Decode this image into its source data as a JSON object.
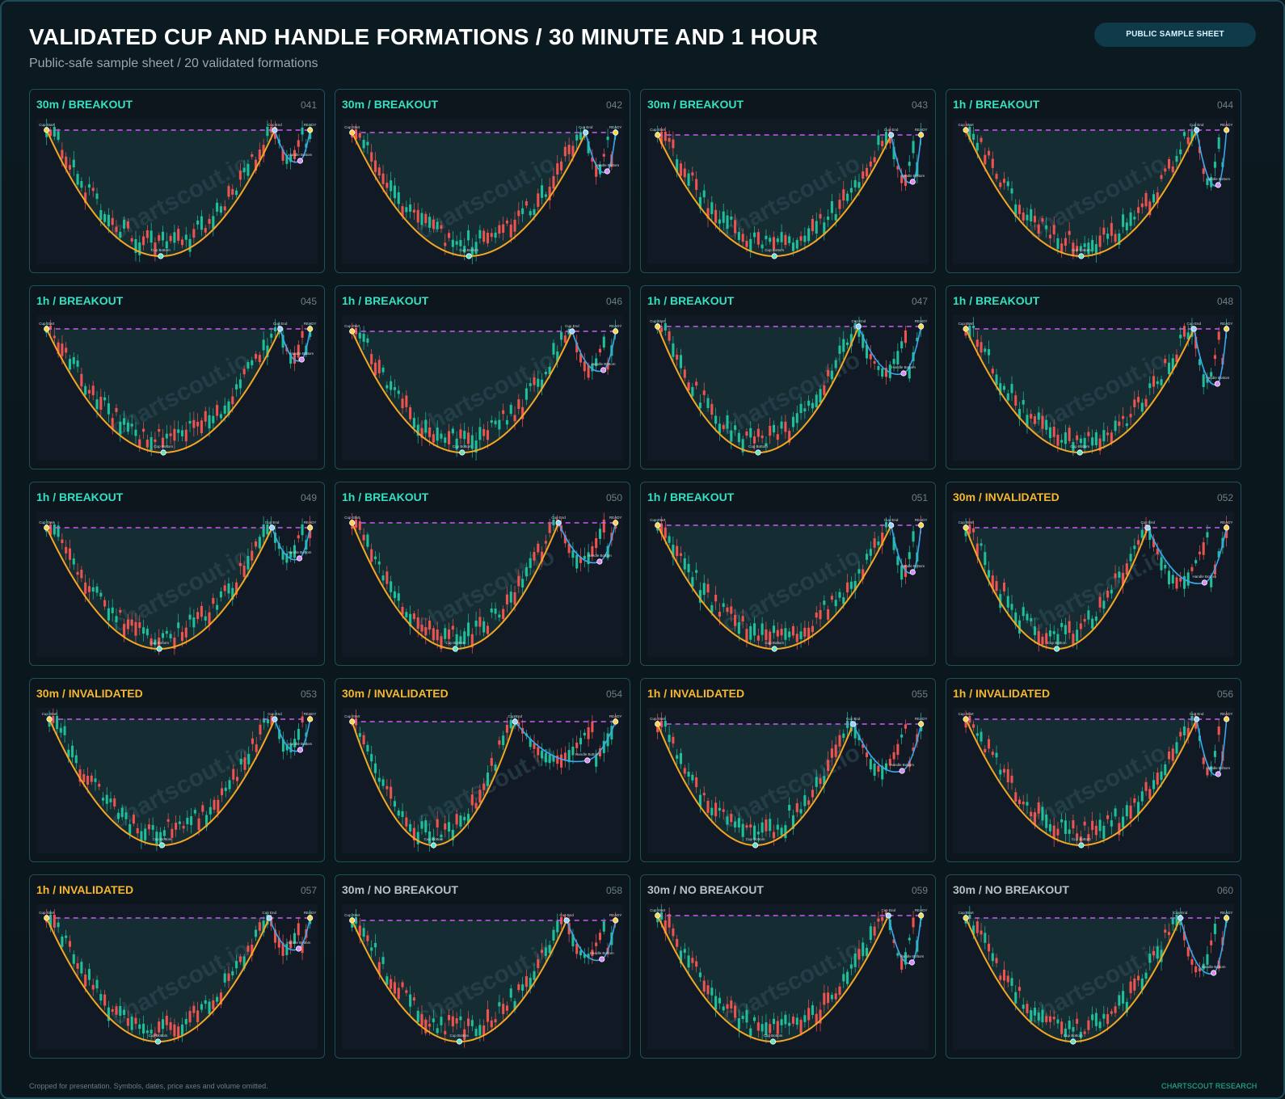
{
  "header": {
    "title": "VALIDATED CUP AND HANDLE FORMATIONS / 30 MINUTE AND 1 HOUR",
    "subtitle": "Public-safe sample sheet / 20 validated formations",
    "badge": "PUBLIC SAMPLE SHEET"
  },
  "footer": {
    "note": "Cropped for presentation. Symbols, dates, price axes and volume omitted.",
    "brand": "CHARTSCOUT RESEARCH"
  },
  "watermark": "chartscout.io",
  "marker_labels": {
    "cup_start": "Cup Start",
    "cup_end": "Cup End",
    "cup_bottom": "Cup Bottom",
    "handle_bottom": "Handle Bottom",
    "ready": "READY"
  },
  "colors": {
    "breakout": "#35e0c0",
    "invalidated": "#f5b731",
    "no_breakout": "#b8c0c6",
    "cup_curve": "#f5a623",
    "resistance": "#c95cf0",
    "handle": "#3aa8f0",
    "bull": "#1fbf9a",
    "bear": "#ef5350"
  },
  "chart_data": [
    {
      "type": "candlestick",
      "timeframe": "30m",
      "status": "BREAKOUT",
      "id": "041",
      "cup_start": 0.02,
      "cup_end": 0.86,
      "ready": 0.99
    },
    {
      "type": "candlestick",
      "timeframe": "30m",
      "status": "BREAKOUT",
      "id": "042",
      "cup_start": 0.02,
      "cup_end": 0.88,
      "ready": 0.99
    },
    {
      "type": "candlestick",
      "timeframe": "30m",
      "status": "BREAKOUT",
      "id": "043",
      "cup_start": 0.02,
      "cup_end": 0.88,
      "ready": 0.99
    },
    {
      "type": "candlestick",
      "timeframe": "1h",
      "status": "BREAKOUT",
      "id": "044",
      "cup_start": 0.03,
      "cup_end": 0.88,
      "ready": 0.99
    },
    {
      "type": "candlestick",
      "timeframe": "1h",
      "status": "BREAKOUT",
      "id": "045",
      "cup_start": 0.02,
      "cup_end": 0.88,
      "ready": 0.99
    },
    {
      "type": "candlestick",
      "timeframe": "1h",
      "status": "BREAKOUT",
      "id": "046",
      "cup_start": 0.02,
      "cup_end": 0.83,
      "ready": 0.99
    },
    {
      "type": "candlestick",
      "timeframe": "1h",
      "status": "BREAKOUT",
      "id": "047",
      "cup_start": 0.02,
      "cup_end": 0.76,
      "ready": 0.99
    },
    {
      "type": "candlestick",
      "timeframe": "1h",
      "status": "BREAKOUT",
      "id": "048",
      "cup_start": 0.03,
      "cup_end": 0.87,
      "ready": 0.99
    },
    {
      "type": "candlestick",
      "timeframe": "1h",
      "status": "BREAKOUT",
      "id": "049",
      "cup_start": 0.02,
      "cup_end": 0.85,
      "ready": 0.99
    },
    {
      "type": "candlestick",
      "timeframe": "1h",
      "status": "BREAKOUT",
      "id": "050",
      "cup_start": 0.02,
      "cup_end": 0.78,
      "ready": 0.99
    },
    {
      "type": "candlestick",
      "timeframe": "1h",
      "status": "BREAKOUT",
      "id": "051",
      "cup_start": 0.02,
      "cup_end": 0.88,
      "ready": 0.99
    },
    {
      "type": "candlestick",
      "timeframe": "30m",
      "status": "INVALIDATED",
      "id": "052",
      "cup_start": 0.03,
      "cup_end": 0.7,
      "ready": 0.99
    },
    {
      "type": "candlestick",
      "timeframe": "30m",
      "status": "INVALIDATED",
      "id": "053",
      "cup_start": 0.03,
      "cup_end": 0.86,
      "ready": 0.99
    },
    {
      "type": "candlestick",
      "timeframe": "30m",
      "status": "INVALIDATED",
      "id": "054",
      "cup_start": 0.02,
      "cup_end": 0.62,
      "ready": 0.99
    },
    {
      "type": "candlestick",
      "timeframe": "1h",
      "status": "INVALIDATED",
      "id": "055",
      "cup_start": 0.02,
      "cup_end": 0.74,
      "ready": 0.99
    },
    {
      "type": "candlestick",
      "timeframe": "1h",
      "status": "INVALIDATED",
      "id": "056",
      "cup_start": 0.03,
      "cup_end": 0.88,
      "ready": 0.99
    },
    {
      "type": "candlestick",
      "timeframe": "1h",
      "status": "INVALIDATED",
      "id": "057",
      "cup_start": 0.02,
      "cup_end": 0.84,
      "ready": 0.99
    },
    {
      "type": "candlestick",
      "timeframe": "30m",
      "status": "NO BREAKOUT",
      "id": "058",
      "cup_start": 0.02,
      "cup_end": 0.81,
      "ready": 0.99
    },
    {
      "type": "candlestick",
      "timeframe": "30m",
      "status": "NO BREAKOUT",
      "id": "059",
      "cup_start": 0.02,
      "cup_end": 0.87,
      "ready": 0.99
    },
    {
      "type": "candlestick",
      "timeframe": "30m",
      "status": "NO BREAKOUT",
      "id": "060",
      "cup_start": 0.03,
      "cup_end": 0.82,
      "ready": 0.99
    }
  ]
}
